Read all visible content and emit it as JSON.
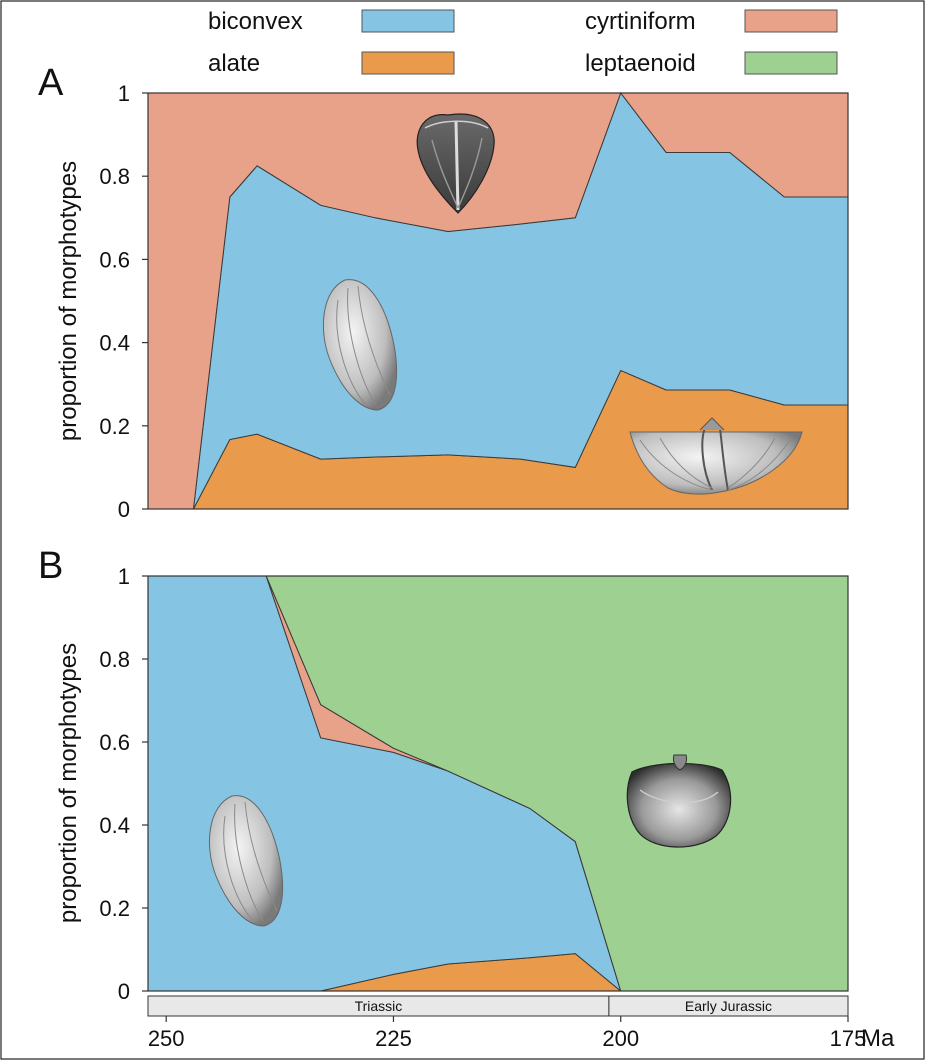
{
  "legend": {
    "placement": "top",
    "items": [
      {
        "label": "biconvex",
        "color": "#85c5e3"
      },
      {
        "label": "alate",
        "color": "#e99a4a"
      },
      {
        "label": "cyrtiniform",
        "color": "#e9a28a"
      },
      {
        "label": "leptaenoid",
        "color": "#9dd091"
      }
    ]
  },
  "chart_data": [
    {
      "type": "area",
      "stacked": true,
      "panel_label": "A",
      "ylabel": "proportion of morphotypes",
      "xlim": [
        252,
        175
      ],
      "ylim": [
        0,
        1
      ],
      "y_ticks": [
        "0",
        "0.2",
        "0.4",
        "0.6",
        "0.8",
        "1"
      ],
      "grid": false,
      "x": [
        252,
        247,
        243,
        240,
        233,
        227,
        219,
        211,
        205,
        200,
        195,
        188,
        182,
        175
      ],
      "series": [
        {
          "name": "alate",
          "color": "#e99a4a",
          "values": [
            0,
            0,
            0.167,
            0.18,
            0.12,
            0.125,
            0.13,
            0.12,
            0.1,
            0.333,
            0.286,
            0.286,
            0.25,
            0.25
          ]
        },
        {
          "name": "biconvex",
          "color": "#85c5e3",
          "values": [
            0,
            0,
            0.583,
            0.645,
            0.61,
            0.575,
            0.537,
            0.565,
            0.6,
            0.667,
            0.571,
            0.571,
            0.5,
            0.5
          ]
        },
        {
          "name": "cyrtiniform",
          "color": "#e9a28a",
          "values": [
            1,
            1,
            0.25,
            0.175,
            0.27,
            0.3,
            0.333,
            0.315,
            0.3,
            0,
            0.143,
            0.143,
            0.25,
            0.25
          ]
        }
      ],
      "illustrations": [
        "cyrtiniform-shell",
        "biconvex-shell",
        "alate-shell"
      ]
    },
    {
      "type": "area",
      "stacked": true,
      "panel_label": "B",
      "ylabel": "proportion of morphotypes",
      "xlim": [
        252,
        175
      ],
      "ylim": [
        0,
        1
      ],
      "y_ticks": [
        "0",
        "0.2",
        "0.4",
        "0.6",
        "0.8",
        "1"
      ],
      "grid": false,
      "x": [
        252,
        239,
        233,
        225,
        219,
        210,
        205,
        200,
        175
      ],
      "series": [
        {
          "name": "alate",
          "color": "#e99a4a",
          "values": [
            0,
            0,
            0,
            0.04,
            0.065,
            0.08,
            0.09,
            0,
            0
          ]
        },
        {
          "name": "biconvex",
          "color": "#85c5e3",
          "values": [
            1,
            1,
            0.61,
            0.535,
            0.465,
            0.36,
            0.27,
            0,
            0
          ]
        },
        {
          "name": "cyrtiniform",
          "color": "#e9a28a",
          "values": [
            0,
            0,
            0.08,
            0.01,
            0,
            0,
            0,
            0,
            0
          ]
        },
        {
          "name": "leptaenoid",
          "color": "#9dd091",
          "values": [
            0,
            0,
            0.31,
            0.415,
            0.47,
            0.56,
            0.64,
            1,
            1
          ]
        }
      ],
      "illustrations": [
        "biconvex-shell",
        "leptaenoid-shell"
      ]
    }
  ],
  "x_axis": {
    "ticks": [
      {
        "value": 250,
        "label": "250"
      },
      {
        "value": 225,
        "label": "225"
      },
      {
        "value": 200,
        "label": "200"
      },
      {
        "value": 175,
        "label": "175"
      }
    ],
    "unit": "Ma",
    "periods": [
      {
        "name": "Triassic",
        "start": 252,
        "end": 201.3
      },
      {
        "name": "Early Jurassic",
        "start": 201.3,
        "end": 175
      }
    ]
  }
}
